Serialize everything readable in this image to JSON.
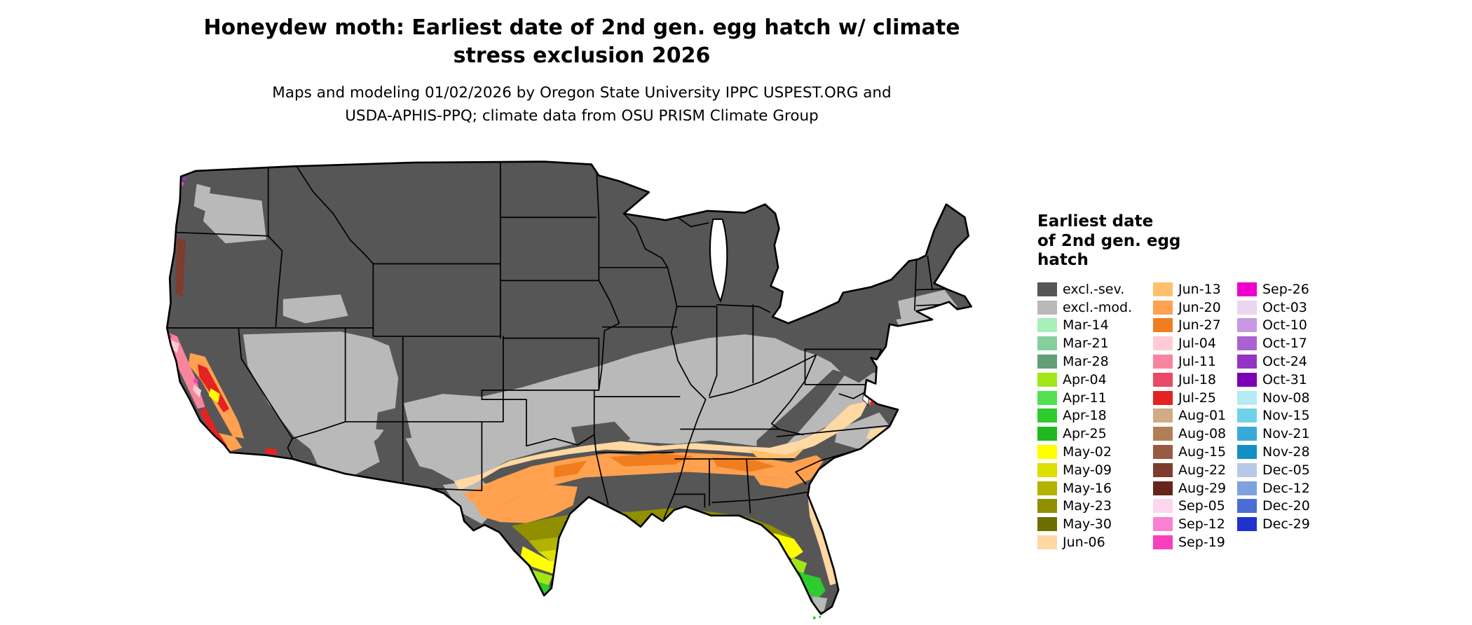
{
  "title": {
    "line1": "Honeydew moth: Earliest date of 2nd gen. egg hatch w/ climate",
    "line2": "stress exclusion 2026"
  },
  "subtitle": {
    "line1": "Maps and modeling 01/02/2026 by Oregon State University IPPC USPEST.ORG and",
    "line2": "USDA-APHIS-PPQ; climate data from OSU PRISM Climate Group"
  },
  "legend": {
    "title_lines": [
      "Earliest date",
      "of 2nd gen. egg",
      "hatch"
    ],
    "columns": [
      [
        {
          "label": "excl.-sev.",
          "color": "#565656"
        },
        {
          "label": "excl.-mod.",
          "color": "#b9b9b9"
        },
        {
          "label": "Mar-14",
          "color": "#a8f0b8"
        },
        {
          "label": "Mar-21",
          "color": "#85c F9e",
          "color_fix": ""
        },
        {
          "label": "Mar-28",
          "color": "#649e78"
        },
        {
          "label": "Apr-04",
          "color": "#a1e619"
        },
        {
          "label": "Apr-11",
          "color": "#52e052"
        },
        {
          "label": "Apr-18",
          "color": "#2ecc2e"
        },
        {
          "label": "Apr-25",
          "color": "#1fb91f"
        },
        {
          "label": "May-02",
          "color": "#ffff00"
        },
        {
          "label": "May-09",
          "color": "#dede00"
        },
        {
          "label": "May-16",
          "color": "#b2b200"
        },
        {
          "label": "May-23",
          "color": "#8f8f00"
        },
        {
          "label": "May-30",
          "color": "#6e6e00"
        },
        {
          "label": "Jun-06",
          "color": "#ffd8a3"
        }
      ],
      [
        {
          "label": "Jun-13",
          "color": "#ffc06e"
        },
        {
          "label": "Jun-20",
          "color": "#ffa14f"
        },
        {
          "label": "Jun-27",
          "color": "#f07d1e"
        },
        {
          "label": "Jul-04",
          "color": "#ffccd6"
        },
        {
          "label": "Jul-11",
          "color": "#f8849e"
        },
        {
          "label": "Jul-18",
          "color": "#ea4a68"
        },
        {
          "label": "Jul-25",
          "color": "#e32222"
        },
        {
          "label": "Aug-01",
          "color": "#d1ab85"
        },
        {
          "label": "Aug-08",
          "color": "#b27f55"
        },
        {
          "label": "Aug-15",
          "color": "#985a40"
        },
        {
          "label": "Aug-22",
          "color": "#7d3c2d"
        },
        {
          "label": "Aug-29",
          "color": "#66241b"
        },
        {
          "label": "Sep-05",
          "color": "#fcd6ee"
        },
        {
          "label": "Sep-12",
          "color": "#fa80d2"
        },
        {
          "label": "Sep-19",
          "color": "#f93fbe"
        }
      ],
      [
        {
          "label": "Sep-26",
          "color": "#ee00cc"
        },
        {
          "label": "Oct-03",
          "color": "#e9d6ef"
        },
        {
          "label": "Oct-10",
          "color": "#c998e2"
        },
        {
          "label": "Oct-17",
          "color": "#aa62d2"
        },
        {
          "label": "Oct-24",
          "color": "#9434c6"
        },
        {
          "label": "Oct-31",
          "color": "#7b00b4"
        },
        {
          "label": "Nov-08",
          "color": "#b5ebf2"
        },
        {
          "label": "Nov-15",
          "color": "#70d2e8"
        },
        {
          "label": "Nov-21",
          "color": "#39aad8"
        },
        {
          "label": "Nov-28",
          "color": "#128fc4"
        },
        {
          "label": "Dec-05",
          "color": "#b7c9e8"
        },
        {
          "label": "Dec-12",
          "color": "#7fa2dd"
        },
        {
          "label": "Dec-20",
          "color": "#4a6ed6"
        },
        {
          "label": "Dec-29",
          "color": "#1f32cc"
        }
      ]
    ]
  },
  "map": {
    "description": "Choropleth map of the contiguous United States showing the earliest date of 2nd generation egg hatch. Most northern and western states are excluded (severe); a central band is excluded (moderate); hatch dates range from March in south Florida and south Texas through May-June across the South, with July-September colors along the Pacific coast.",
    "outline_color": "#000000",
    "background_color": "#ffffff"
  }
}
